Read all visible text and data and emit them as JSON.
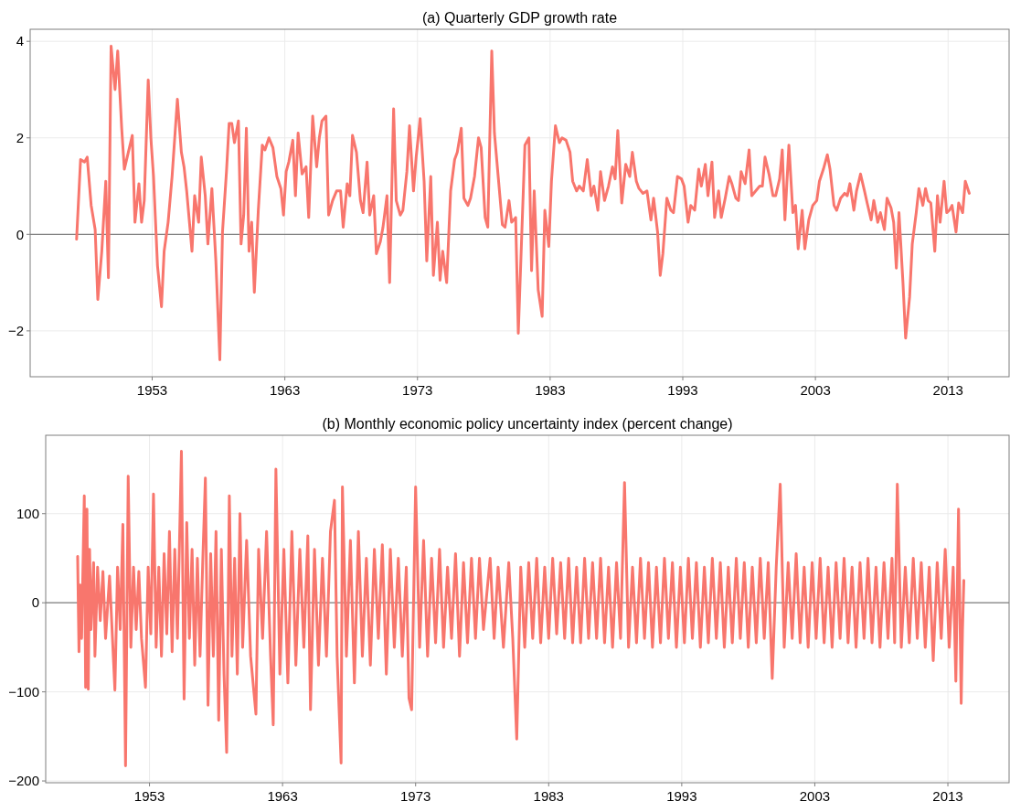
{
  "chart_data": [
    {
      "type": "line",
      "title": "(a) Quarterly GDP growth rate",
      "xlim": [
        1943.8,
        2017.6
      ],
      "xticks": [
        1953,
        1963,
        1973,
        1983,
        1993,
        2003,
        2013
      ],
      "ylim": [
        -2.95,
        4.25
      ],
      "yticks": [
        -2,
        0,
        2,
        4
      ],
      "grid": true,
      "ref_lines": [
        {
          "axis": "y",
          "value": 0,
          "color": "#7f7f7f"
        }
      ],
      "series": [
        {
          "color": "#f8766d",
          "x": [
            1947.3,
            1947.6,
            1947.9,
            1948.1,
            1948.4,
            1948.7,
            1948.9,
            1949.2,
            1949.5,
            1949.7,
            1949.9,
            1950.2,
            1950.4,
            1950.7,
            1950.9,
            1951.2,
            1951.5,
            1951.7,
            1952.0,
            1952.2,
            1952.4,
            1952.7,
            1952.9,
            1953.1,
            1953.4,
            1953.7,
            1953.9,
            1954.2,
            1954.5,
            1954.7,
            1954.9,
            1955.2,
            1955.4,
            1955.6,
            1956.0,
            1956.2,
            1956.5,
            1956.7,
            1957.0,
            1957.2,
            1957.5,
            1957.8,
            1958.1,
            1958.3,
            1958.6,
            1958.8,
            1959.0,
            1959.2,
            1959.5,
            1959.7,
            1959.9,
            1960.1,
            1960.3,
            1960.5,
            1960.7,
            1961.0,
            1961.3,
            1961.5,
            1961.8,
            1962.1,
            1962.4,
            1962.7,
            1962.9,
            1963.1,
            1963.3,
            1963.6,
            1963.8,
            1964.0,
            1964.3,
            1964.6,
            1964.8,
            1965.1,
            1965.4,
            1965.6,
            1965.8,
            1966.1,
            1966.3,
            1966.6,
            1966.9,
            1967.2,
            1967.4,
            1967.7,
            1967.9,
            1968.1,
            1968.4,
            1968.7,
            1968.9,
            1969.2,
            1969.4,
            1969.7,
            1969.9,
            1970.2,
            1970.4,
            1970.7,
            1970.9,
            1971.2,
            1971.4,
            1971.7,
            1971.9,
            1972.2,
            1972.4,
            1972.7,
            1972.9,
            1973.2,
            1973.5,
            1973.7,
            1974.0,
            1974.2,
            1974.5,
            1974.7,
            1974.9,
            1975.2,
            1975.5,
            1975.8,
            1976.0,
            1976.3,
            1976.5,
            1976.8,
            1977.0,
            1977.3,
            1977.6,
            1977.8,
            1978.1,
            1978.3,
            1978.6,
            1978.8,
            1979.1,
            1979.4,
            1979.6,
            1979.9,
            1980.1,
            1980.4,
            1980.6,
            1980.9,
            1981.1,
            1981.4,
            1981.6,
            1981.8,
            1982.1,
            1982.4,
            1982.6,
            1982.9,
            1983.1,
            1983.4,
            1983.7,
            1983.9,
            1984.2,
            1984.5,
            1984.7,
            1985.0,
            1985.2,
            1985.5,
            1985.8,
            1986.1,
            1986.3,
            1986.6,
            1986.8,
            1987.1,
            1987.4,
            1987.7,
            1987.9,
            1988.1,
            1988.4,
            1988.7,
            1989.0,
            1989.2,
            1989.5,
            1989.7,
            1990.0,
            1990.3,
            1990.6,
            1990.8,
            1991.1,
            1991.3,
            1991.5,
            1991.8,
            1992.1,
            1992.3,
            1992.6,
            1992.9,
            1993.1,
            1993.4,
            1993.6,
            1993.9,
            1994.2,
            1994.4,
            1994.7,
            1994.9,
            1995.2,
            1995.4,
            1995.7,
            1995.9,
            1996.2,
            1996.5,
            1996.7,
            1997.0,
            1997.2,
            1997.4,
            1997.7,
            1998.0,
            1998.2,
            1998.5,
            1998.8,
            1999.0,
            1999.2,
            1999.5,
            1999.8,
            2000.0,
            2000.3,
            2000.5,
            2000.7,
            2001.0,
            2001.3,
            2001.5,
            2001.7,
            2002.0,
            2002.2,
            2002.5,
            2002.8,
            2003.1,
            2003.3,
            2003.6,
            2003.9,
            2004.1,
            2004.4,
            2004.6,
            2004.9,
            2005.2,
            2005.4,
            2005.6,
            2005.9,
            2006.1,
            2006.4,
            2006.7,
            2006.9,
            2007.2,
            2007.4,
            2007.7,
            2007.9,
            2008.2,
            2008.4,
            2008.7,
            2008.9,
            2009.1,
            2009.3,
            2009.6,
            2009.8,
            2010.1,
            2010.3,
            2010.6,
            2010.8,
            2011.1,
            2011.3,
            2011.5,
            2011.7,
            2012.0,
            2012.2,
            2012.4,
            2012.7,
            2012.9,
            2013.1,
            2013.3,
            2013.6,
            2013.8,
            2014.1,
            2014.3,
            2014.6
          ],
          "values": [
            -0.1,
            1.55,
            1.5,
            1.6,
            0.6,
            0.1,
            -1.35,
            -0.35,
            1.1,
            -0.9,
            3.9,
            3.0,
            3.8,
            2.2,
            1.35,
            1.7,
            2.05,
            0.25,
            1.05,
            0.25,
            0.7,
            3.2,
            2.0,
            1.2,
            -0.65,
            -1.5,
            -0.35,
            0.25,
            1.2,
            2.0,
            2.8,
            1.7,
            1.4,
            0.9,
            -0.35,
            0.8,
            0.25,
            1.6,
            0.8,
            -0.2,
            0.95,
            -0.55,
            -2.6,
            0.05,
            1.3,
            2.3,
            2.3,
            1.9,
            2.35,
            -0.2,
            0.4,
            2.2,
            -0.35,
            0.25,
            -1.2,
            0.5,
            1.85,
            1.75,
            2.0,
            1.8,
            1.2,
            0.95,
            0.4,
            1.3,
            1.5,
            1.95,
            0.8,
            2.1,
            1.25,
            1.4,
            0.35,
            2.45,
            1.4,
            2.0,
            2.35,
            2.45,
            0.4,
            0.7,
            0.9,
            0.9,
            0.15,
            1.05,
            0.8,
            2.05,
            1.7,
            0.7,
            0.45,
            1.5,
            0.4,
            0.8,
            -0.4,
            -0.15,
            0.15,
            0.8,
            -1.0,
            2.6,
            0.7,
            0.4,
            0.5,
            1.3,
            2.25,
            0.9,
            1.6,
            2.4,
            1.1,
            -0.55,
            1.2,
            -0.85,
            0.25,
            -0.95,
            -0.35,
            -1.0,
            0.9,
            1.55,
            1.7,
            2.2,
            0.75,
            0.6,
            0.75,
            1.2,
            2.0,
            1.8,
            0.35,
            0.15,
            3.8,
            2.1,
            1.15,
            0.2,
            0.15,
            0.7,
            0.25,
            0.35,
            -2.05,
            0.3,
            1.85,
            2.0,
            -0.75,
            0.9,
            -1.15,
            -1.7,
            0.5,
            -0.25,
            1.1,
            2.25,
            1.9,
            2.0,
            1.95,
            1.7,
            1.1,
            0.9,
            1.0,
            0.9,
            1.55,
            0.8,
            1.0,
            0.5,
            1.3,
            0.7,
            1.0,
            1.4,
            1.15,
            2.15,
            0.65,
            1.45,
            1.2,
            1.7,
            1.1,
            0.95,
            0.85,
            0.9,
            0.3,
            0.75,
            0.05,
            -0.85,
            -0.4,
            0.75,
            0.5,
            0.45,
            1.2,
            1.15,
            1.0,
            0.25,
            0.6,
            0.5,
            1.35,
            1.0,
            1.45,
            0.8,
            1.5,
            0.35,
            0.9,
            0.35,
            0.75,
            1.2,
            1.05,
            0.75,
            0.7,
            1.3,
            1.05,
            1.75,
            0.8,
            0.9,
            1.0,
            1.0,
            1.6,
            1.25,
            0.8,
            0.8,
            1.15,
            1.75,
            0.3,
            1.85,
            0.45,
            0.6,
            -0.3,
            0.5,
            -0.3,
            0.3,
            0.6,
            0.7,
            1.1,
            1.35,
            1.65,
            1.35,
            0.6,
            0.5,
            0.75,
            0.85,
            0.8,
            1.05,
            0.5,
            0.9,
            1.25,
            0.9,
            0.65,
            0.3,
            0.7,
            0.25,
            0.45,
            0.1,
            0.75,
            0.55,
            0.25,
            -0.7,
            0.45,
            -1.0,
            -2.15,
            -1.3,
            -0.2,
            0.45,
            0.95,
            0.6,
            0.95,
            0.7,
            0.65,
            -0.35,
            0.8,
            0.25,
            1.1,
            0.45,
            0.5,
            0.6,
            0.05,
            0.65,
            0.45,
            1.1,
            0.85
          ]
        }
      ]
    },
    {
      "type": "line",
      "title": "(b) Monthly economic policy uncertainty index (percent change)",
      "xlim": [
        1945.2,
        2017.6
      ],
      "xticks": [
        1953,
        1963,
        1973,
        1983,
        1993,
        2003,
        2013
      ],
      "ylim": [
        -202,
        188
      ],
      "yticks": [
        -200,
        -100,
        0,
        100
      ],
      "grid": true,
      "ref_lines": [
        {
          "axis": "y",
          "value": 0,
          "color": "#7f7f7f"
        }
      ],
      "series": [
        {
          "color": "#f8766d",
          "x": [
            1947.6,
            1947.7,
            1947.8,
            1947.9,
            1948.1,
            1948.2,
            1948.3,
            1948.4,
            1948.5,
            1948.6,
            1948.8,
            1948.9,
            1949.1,
            1949.3,
            1949.5,
            1949.7,
            1950.0,
            1950.4,
            1950.6,
            1950.8,
            1951.0,
            1951.2,
            1951.4,
            1951.6,
            1951.8,
            1952.0,
            1952.2,
            1952.4,
            1952.7,
            1952.9,
            1953.1,
            1953.3,
            1953.5,
            1953.7,
            1953.9,
            1954.1,
            1954.3,
            1954.5,
            1954.7,
            1954.9,
            1955.1,
            1955.4,
            1955.6,
            1955.8,
            1956.0,
            1956.2,
            1956.4,
            1956.6,
            1956.8,
            1957.0,
            1957.2,
            1957.4,
            1957.6,
            1957.8,
            1958.0,
            1958.2,
            1958.4,
            1958.6,
            1958.8,
            1959.0,
            1959.2,
            1959.4,
            1959.6,
            1959.8,
            1960.0,
            1960.3,
            1960.6,
            1961.0,
            1961.2,
            1961.5,
            1961.8,
            1962.1,
            1962.3,
            1962.5,
            1962.8,
            1963.1,
            1963.4,
            1963.7,
            1964.0,
            1964.3,
            1964.6,
            1964.9,
            1965.1,
            1965.4,
            1965.7,
            1966.0,
            1966.3,
            1966.6,
            1966.9,
            1967.1,
            1967.4,
            1967.5,
            1967.8,
            1968.1,
            1968.4,
            1968.7,
            1969.0,
            1969.3,
            1969.6,
            1969.9,
            1970.2,
            1970.5,
            1970.8,
            1971.1,
            1971.4,
            1971.7,
            1972.0,
            1972.3,
            1972.5,
            1972.7,
            1973.0,
            1973.3,
            1973.6,
            1973.9,
            1974.2,
            1974.5,
            1974.8,
            1975.1,
            1975.4,
            1975.7,
            1976.0,
            1976.3,
            1976.6,
            1976.9,
            1977.2,
            1977.5,
            1977.8,
            1978.1,
            1978.6,
            1978.9,
            1979.2,
            1979.6,
            1980.0,
            1980.3,
            1980.6,
            1980.9,
            1981.2,
            1981.5,
            1981.8,
            1982.1,
            1982.4,
            1982.7,
            1983.0,
            1983.3,
            1983.6,
            1983.9,
            1984.2,
            1984.5,
            1984.8,
            1985.1,
            1985.4,
            1985.7,
            1986.0,
            1986.3,
            1986.6,
            1986.9,
            1987.2,
            1987.5,
            1987.8,
            1988.1,
            1988.4,
            1988.7,
            1989.0,
            1989.3,
            1989.6,
            1989.9,
            1990.2,
            1990.5,
            1990.8,
            1991.1,
            1991.4,
            1991.7,
            1992.0,
            1992.3,
            1992.6,
            1992.9,
            1993.2,
            1993.5,
            1993.8,
            1994.1,
            1994.4,
            1994.7,
            1995.0,
            1995.3,
            1995.6,
            1995.9,
            1996.2,
            1996.5,
            1996.8,
            1997.1,
            1997.4,
            1997.7,
            1998.0,
            1998.3,
            1998.6,
            1998.9,
            1999.2,
            1999.5,
            1999.8,
            2000.1,
            2000.4,
            2000.7,
            2001.0,
            2001.3,
            2001.6,
            2001.9,
            2002.2,
            2002.5,
            2002.8,
            2003.1,
            2003.4,
            2003.7,
            2004.0,
            2004.3,
            2004.6,
            2004.9,
            2005.2,
            2005.5,
            2005.8,
            2006.1,
            2006.4,
            2006.7,
            2007.0,
            2007.3,
            2007.6,
            2007.9,
            2008.2,
            2008.5,
            2008.8,
            2009.0,
            2009.2,
            2009.5,
            2009.8,
            2010.1,
            2010.4,
            2010.7,
            2011.0,
            2011.3,
            2011.6,
            2011.9,
            2012.2,
            2012.5,
            2012.8,
            2013.1,
            2013.4,
            2013.6,
            2013.8,
            2014.0,
            2014.1,
            2014.2
          ],
          "values": [
            52,
            -55,
            20,
            -40,
            120,
            -95,
            105,
            -97,
            60,
            -30,
            45,
            -60,
            40,
            -20,
            35,
            -40,
            30,
            -98,
            40,
            -30,
            88,
            -183,
            142,
            -50,
            40,
            -30,
            35,
            -40,
            -95,
            40,
            -35,
            122,
            -50,
            40,
            -60,
            55,
            -35,
            80,
            -55,
            60,
            -40,
            170,
            -108,
            90,
            -40,
            60,
            -70,
            50,
            -60,
            45,
            140,
            -115,
            55,
            -60,
            80,
            -132,
            60,
            -80,
            -168,
            120,
            -60,
            50,
            -80,
            100,
            -50,
            70,
            -60,
            -125,
            60,
            -40,
            80,
            -60,
            -137,
            150,
            -80,
            60,
            -90,
            80,
            -70,
            60,
            -50,
            75,
            -120,
            60,
            -70,
            50,
            -60,
            80,
            115,
            -60,
            -180,
            130,
            -60,
            70,
            -90,
            80,
            -60,
            50,
            -70,
            60,
            -40,
            65,
            -80,
            60,
            -50,
            50,
            -60,
            40,
            -107,
            -120,
            130,
            -50,
            70,
            -60,
            50,
            -45,
            60,
            -50,
            40,
            -40,
            55,
            -60,
            45,
            -45,
            50,
            -40,
            50,
            -30,
            50,
            -40,
            40,
            -50,
            45,
            -40,
            -153,
            40,
            -50,
            45,
            -40,
            50,
            -45,
            40,
            -40,
            50,
            -35,
            45,
            -40,
            50,
            -45,
            40,
            -45,
            50,
            -40,
            45,
            -40,
            50,
            -45,
            40,
            -50,
            45,
            -40,
            135,
            -50,
            40,
            -45,
            50,
            -40,
            45,
            -50,
            40,
            -45,
            50,
            -40,
            45,
            -50,
            40,
            -45,
            50,
            -40,
            45,
            -50,
            40,
            -45,
            50,
            -40,
            45,
            -50,
            40,
            -45,
            50,
            -40,
            45,
            -50,
            40,
            -45,
            50,
            -40,
            45,
            -85,
            40,
            133,
            -50,
            45,
            -40,
            55,
            -45,
            40,
            -50,
            45,
            -40,
            50,
            -45,
            40,
            -50,
            45,
            -40,
            50,
            -45,
            40,
            -50,
            45,
            -40,
            50,
            -45,
            40,
            -50,
            45,
            -40,
            50,
            -45,
            133,
            -50,
            40,
            -45,
            50,
            -40,
            45,
            -50,
            40,
            -65,
            45,
            -40,
            60,
            -50,
            40,
            -88,
            105,
            -113,
            -30,
            25
          ]
        }
      ]
    }
  ]
}
